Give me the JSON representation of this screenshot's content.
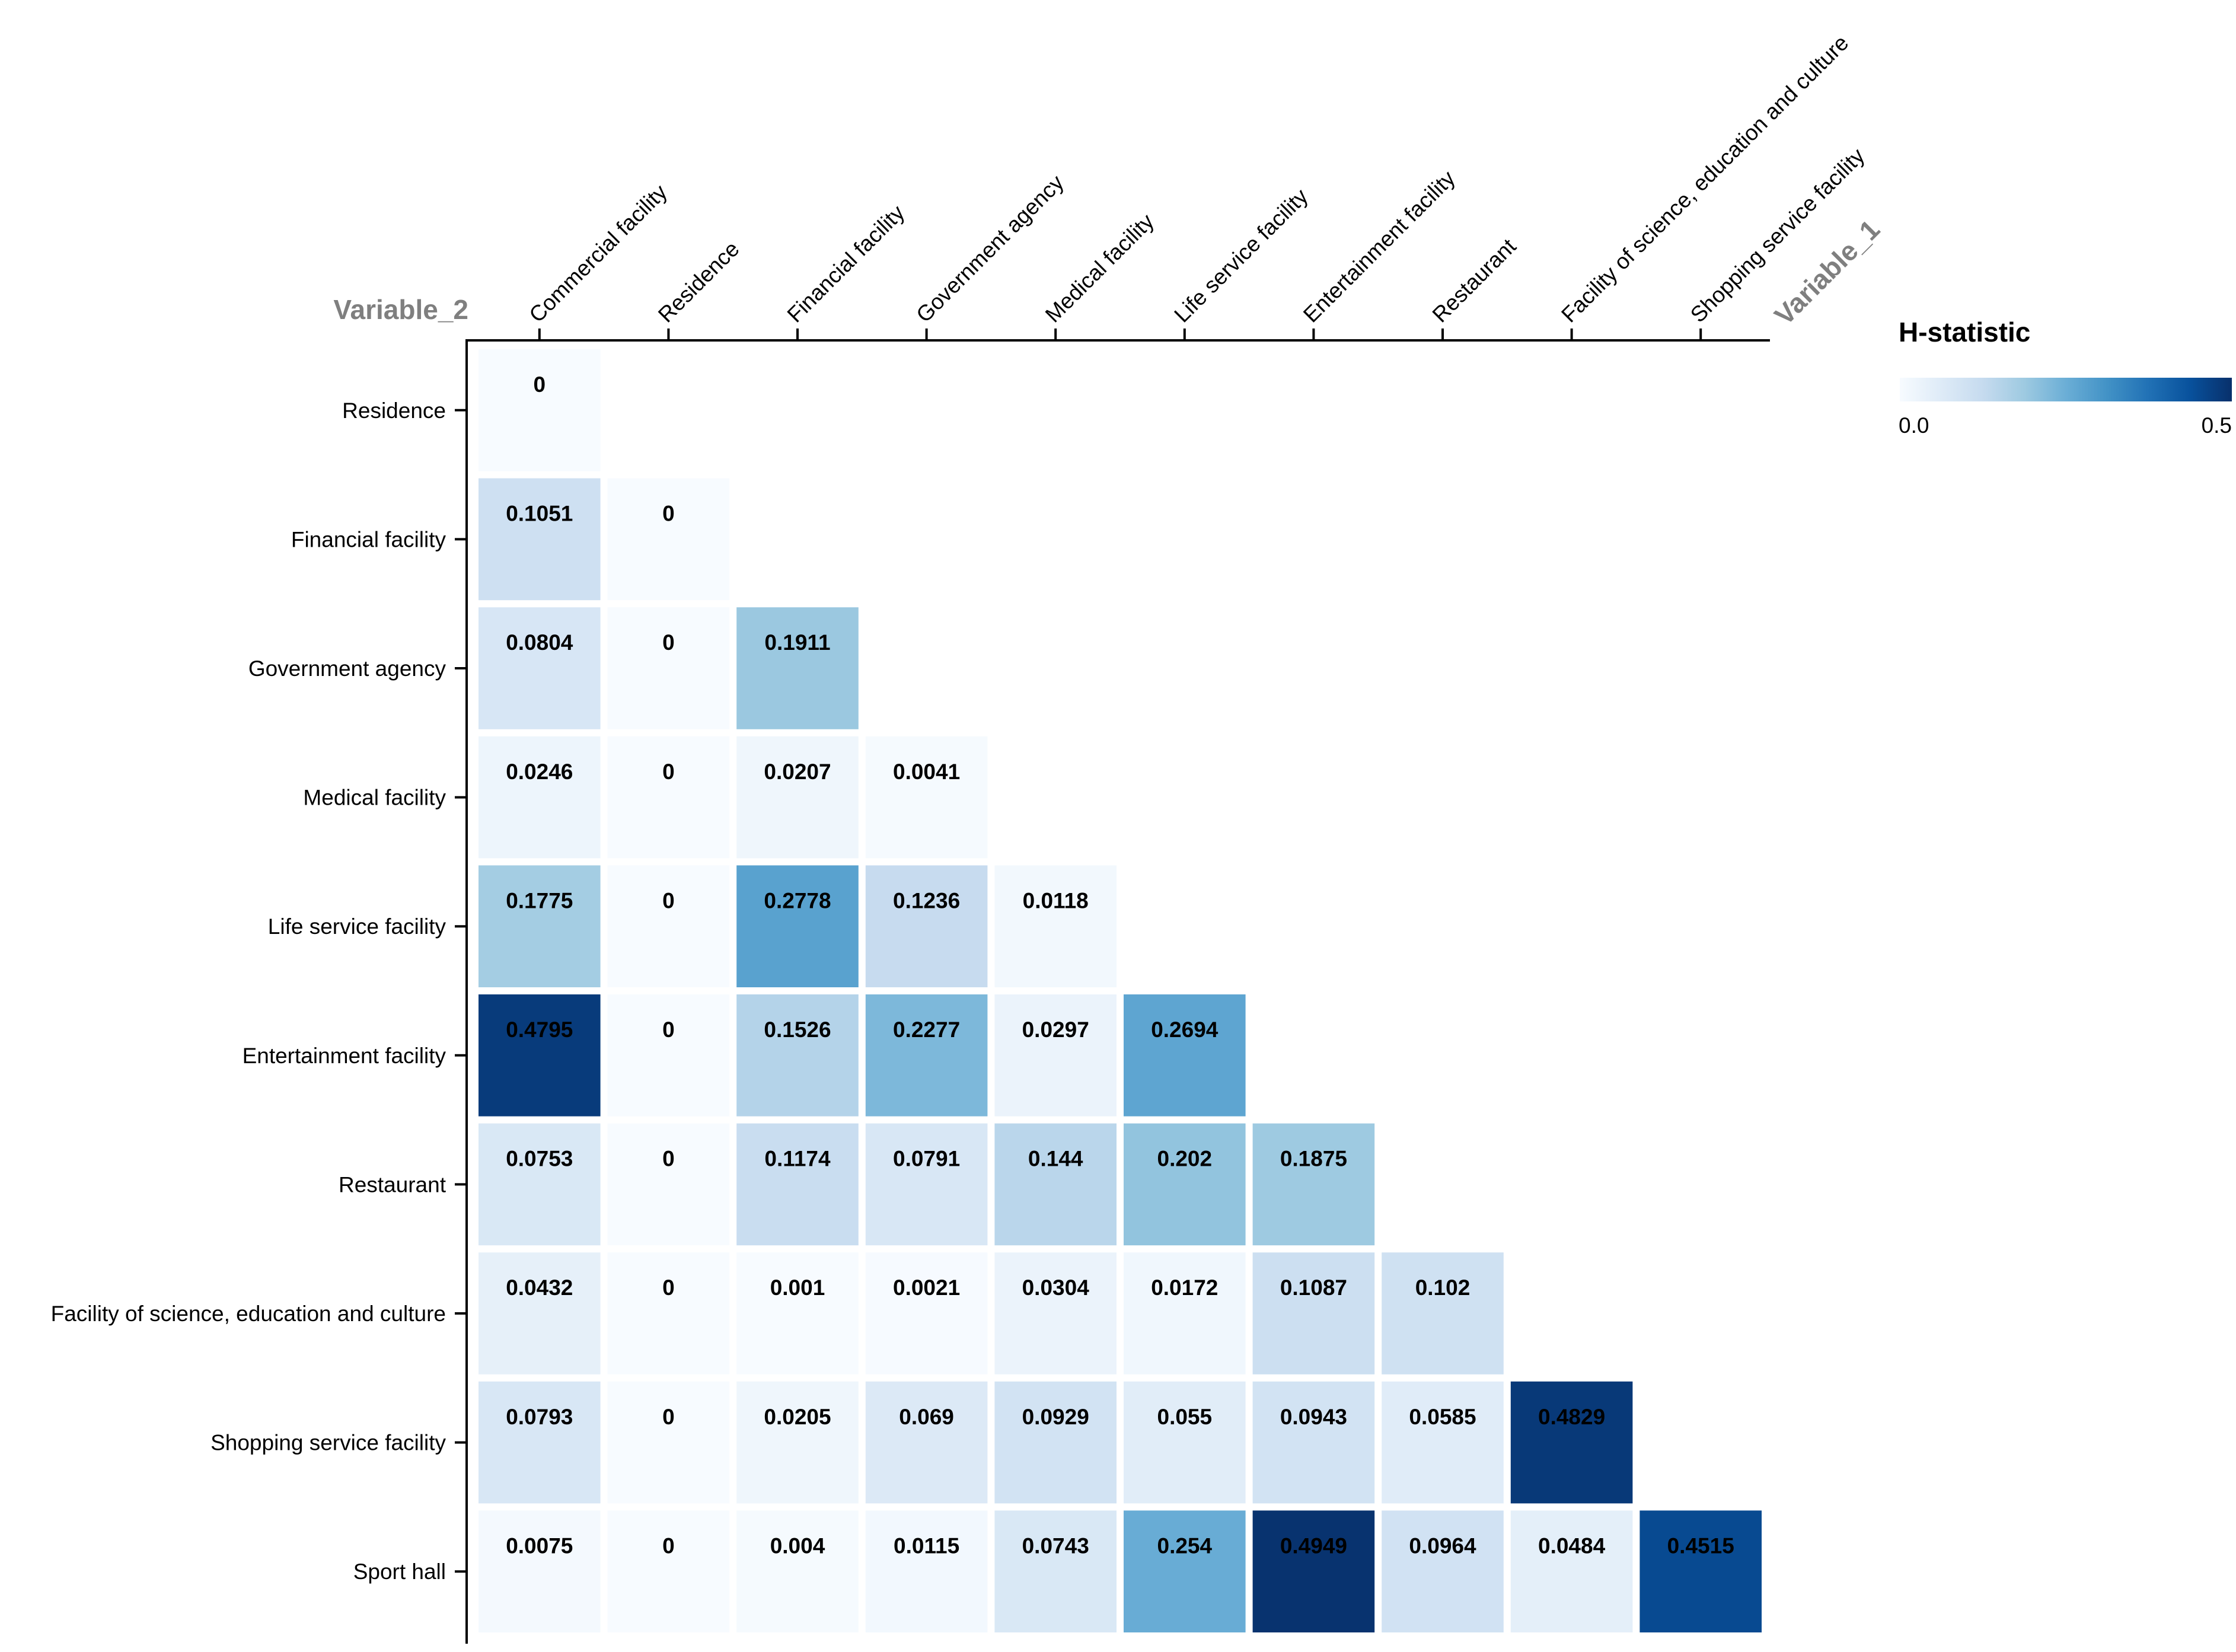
{
  "chart_data": {
    "type": "heatmap",
    "triangle": "lower",
    "x_axis_title": "Variable_1",
    "y_axis_title": "Variable_2",
    "x_categories": [
      "Commercial facility",
      "Residence",
      "Financial facility",
      "Government agency",
      "Medical facility",
      "Life service facility",
      "Entertainment facility",
      "Restaurant",
      "Facility of science, education and culture",
      "Shopping service facility"
    ],
    "y_categories": [
      "Residence",
      "Financial facility",
      "Government agency",
      "Medical facility",
      "Life service facility",
      "Entertainment facility",
      "Restaurant",
      "Facility of science, education and culture",
      "Shopping service facility",
      "Sport hall"
    ],
    "values": [
      [
        0
      ],
      [
        0.1051,
        0
      ],
      [
        0.0804,
        0,
        0.1911
      ],
      [
        0.0246,
        0,
        0.0207,
        0.0041
      ],
      [
        0.1775,
        0,
        0.2778,
        0.1236,
        0.0118
      ],
      [
        0.4795,
        0,
        0.1526,
        0.2277,
        0.0297,
        0.2694
      ],
      [
        0.0753,
        0,
        0.1174,
        0.0791,
        0.144,
        0.202,
        0.1875
      ],
      [
        0.0432,
        0,
        0.001,
        0.0021,
        0.0304,
        0.0172,
        0.1087,
        0.102
      ],
      [
        0.0793,
        0,
        0.0205,
        0.069,
        0.0929,
        0.055,
        0.0943,
        0.0585,
        0.4829
      ],
      [
        0.0075,
        0,
        0.004,
        0.0115,
        0.0743,
        0.254,
        0.4949,
        0.0964,
        0.0484,
        0.4515
      ]
    ],
    "value_labels": [
      [
        "0"
      ],
      [
        "0.1051",
        "0"
      ],
      [
        "0.0804",
        "0",
        "0.1911"
      ],
      [
        "0.0246",
        "0",
        "0.0207",
        "0.0041"
      ],
      [
        "0.1775",
        "0",
        "0.2778",
        "0.1236",
        "0.0118"
      ],
      [
        "0.4795",
        "0",
        "0.1526",
        "0.2277",
        "0.0297",
        "0.2694"
      ],
      [
        "0.0753",
        "0",
        "0.1174",
        "0.0791",
        "0.144",
        "0.202",
        "0.1875"
      ],
      [
        "0.0432",
        "0",
        "0.001",
        "0.0021",
        "0.0304",
        "0.0172",
        "0.1087",
        "0.102"
      ],
      [
        "0.0793",
        "0",
        "0.0205",
        "0.069",
        "0.0929",
        "0.055",
        "0.0943",
        "0.0585",
        "0.4829"
      ],
      [
        "0.0075",
        "0",
        "0.004",
        "0.0115",
        "0.0743",
        "0.254",
        "0.4949",
        "0.0964",
        "0.0484",
        "0.4515"
      ]
    ],
    "color_scale": {
      "title": "H-statistic",
      "min": 0.0,
      "max": 0.5,
      "tick_labels": [
        "0.0",
        "0.5"
      ],
      "colors": [
        "#f7fbff",
        "#deebf7",
        "#c6dbef",
        "#9ecae1",
        "#6baed6",
        "#4292c6",
        "#2171b5",
        "#08519c",
        "#08306b"
      ]
    },
    "legend_position": "top-right"
  }
}
